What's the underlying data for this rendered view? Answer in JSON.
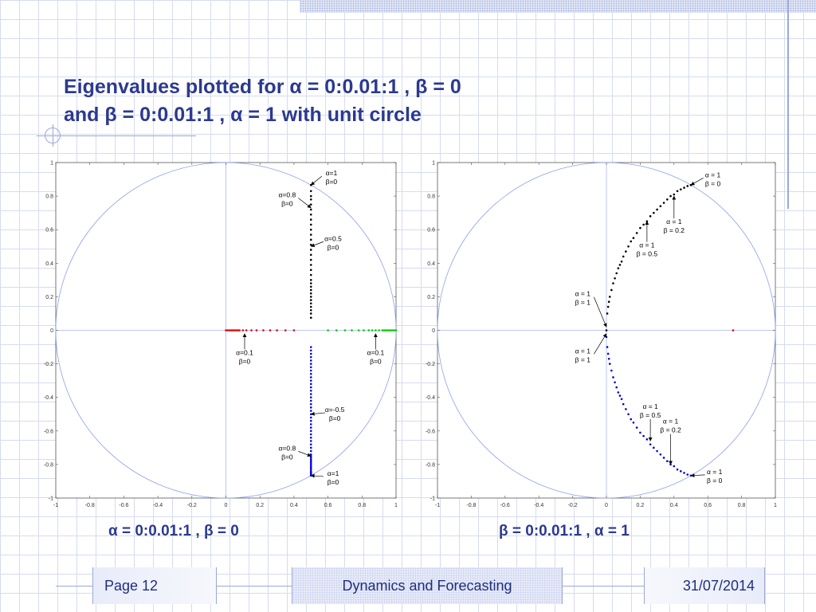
{
  "slide": {
    "title_line1": "Eigenvalues  plotted  for α = 0:0.01:1 , β = 0",
    "title_line2": "and β = 0:0.01:1 , α = 1 with unit circle",
    "caption_left": "α = 0:0.01:1 , β = 0",
    "caption_right": "β = 0:0.01:1 , α = 1",
    "footer_page": "Page 12",
    "footer_title": "Dynamics and Forecasting",
    "footer_date": "31/07/2014"
  },
  "colors": {
    "title": "#2b3990",
    "circle": "#8c9ff0",
    "axis": "#aab4ee",
    "red": "#e00000",
    "green": "#00cc00",
    "black": "#000000",
    "blue": "#0000dd"
  },
  "chart_data": [
    {
      "type": "scatter",
      "xlim": [
        -1,
        1
      ],
      "ylim": [
        -1,
        1
      ],
      "xticks": [
        -1,
        -0.8,
        -0.6,
        -0.4,
        -0.2,
        0,
        0.2,
        0.4,
        0.6,
        0.8,
        1
      ],
      "yticks": [
        -1,
        -0.8,
        -0.6,
        -0.4,
        -0.2,
        0,
        0.2,
        0.4,
        0.6,
        0.8,
        1
      ],
      "tick_labels_x": [
        "-1",
        "-0.8",
        "-0.6",
        "-0.4",
        "-0.2",
        "0",
        "0.2",
        "0.4",
        "0.6",
        "0.8",
        "1"
      ],
      "tick_labels_y": [
        "-1",
        "-0.8",
        "-0.6",
        "-0.4",
        "-0.2",
        "0",
        "0.2",
        "0.4",
        "0.6",
        "0.8",
        "1"
      ],
      "unit_circle": true,
      "grid": false,
      "series": [
        {
          "color": "#e00000",
          "x": [
            0.0,
            0.01,
            0.02,
            0.03,
            0.04,
            0.05,
            0.06,
            0.07,
            0.08,
            0.1,
            0.12,
            0.15,
            0.18,
            0.22,
            0.26,
            0.3,
            0.35,
            0.4
          ],
          "y": [
            0,
            0,
            0,
            0,
            0,
            0,
            0,
            0,
            0,
            0,
            0,
            0,
            0,
            0,
            0,
            0,
            0,
            0
          ]
        },
        {
          "color": "#00cc00",
          "x": [
            0.6,
            0.65,
            0.7,
            0.74,
            0.78,
            0.81,
            0.84,
            0.86,
            0.88,
            0.9,
            0.92,
            0.93,
            0.94,
            0.95,
            0.96,
            0.97,
            0.98,
            0.99,
            1.0
          ],
          "y": [
            0,
            0,
            0,
            0,
            0,
            0,
            0,
            0,
            0,
            0,
            0,
            0,
            0,
            0,
            0,
            0,
            0,
            0,
            0
          ]
        },
        {
          "color": "#000000",
          "x": [
            0.5,
            0.5,
            0.5,
            0.5,
            0.5,
            0.5,
            0.5,
            0.5,
            0.5,
            0.5,
            0.5,
            0.5,
            0.5,
            0.5,
            0.5,
            0.5,
            0.5,
            0.5,
            0.5,
            0.5,
            0.5,
            0.5,
            0.5,
            0.5,
            0.5,
            0.5,
            0.5,
            0.5,
            0.5,
            0.5,
            0.5
          ],
          "y": [
            0.075,
            0.1,
            0.12,
            0.14,
            0.16,
            0.18,
            0.2,
            0.22,
            0.24,
            0.26,
            0.28,
            0.3,
            0.33,
            0.36,
            0.39,
            0.42,
            0.45,
            0.48,
            0.51,
            0.54,
            0.57,
            0.6,
            0.63,
            0.66,
            0.69,
            0.72,
            0.75,
            0.78,
            0.8,
            0.83,
            0.866
          ]
        },
        {
          "color": "#0000dd",
          "x": [
            0.5,
            0.5,
            0.5,
            0.5,
            0.5,
            0.5,
            0.5,
            0.5,
            0.5,
            0.5,
            0.5,
            0.5,
            0.5,
            0.5,
            0.5,
            0.5,
            0.5,
            0.5,
            0.5,
            0.5,
            0.5,
            0.5,
            0.5,
            0.5,
            0.5,
            0.5,
            0.5,
            0.5,
            0.5,
            0.5,
            0.5,
            0.5,
            0.5,
            0.5,
            0.5,
            0.5,
            0.5,
            0.5,
            0.5,
            0.5,
            0.5,
            0.5,
            0.5,
            0.5,
            0.5,
            0.5,
            0.5,
            0.5
          ],
          "y": [
            -0.1,
            -0.12,
            -0.14,
            -0.16,
            -0.18,
            -0.2,
            -0.22,
            -0.24,
            -0.26,
            -0.28,
            -0.3,
            -0.32,
            -0.34,
            -0.36,
            -0.38,
            -0.4,
            -0.42,
            -0.44,
            -0.46,
            -0.48,
            -0.5,
            -0.52,
            -0.54,
            -0.56,
            -0.58,
            -0.6,
            -0.62,
            -0.64,
            -0.66,
            -0.68,
            -0.7,
            -0.72,
            -0.74,
            -0.75,
            -0.76,
            -0.77,
            -0.78,
            -0.79,
            -0.8,
            -0.81,
            -0.82,
            -0.83,
            -0.84,
            -0.845,
            -0.85,
            -0.855,
            -0.86,
            -0.866
          ]
        }
      ],
      "annotations": [
        {
          "text": [
            "α=1",
            "β=0"
          ],
          "x": 0.62,
          "y": 0.89,
          "ax": 0.5,
          "ay": 0.866,
          "dir": "left"
        },
        {
          "text": [
            "α=0.8",
            "β=0"
          ],
          "x": 0.36,
          "y": 0.76,
          "ax": 0.5,
          "ay": 0.73,
          "dir": "right"
        },
        {
          "text": [
            "α=0.5",
            "β=0"
          ],
          "x": 0.63,
          "y": 0.5,
          "ax": 0.5,
          "ay": 0.5,
          "dir": "left"
        },
        {
          "text": [
            "α=0.1",
            "β=0"
          ],
          "x": 0.11,
          "y": -0.18,
          "ax": 0.11,
          "ay": -0.02,
          "dir": "up"
        },
        {
          "text": [
            "α=0.1",
            "β=0"
          ],
          "x": 0.88,
          "y": -0.18,
          "ax": 0.88,
          "ay": -0.02,
          "dir": "up"
        },
        {
          "text": [
            "α=-0.5",
            "β=0"
          ],
          "x": 0.64,
          "y": -0.52,
          "ax": 0.5,
          "ay": -0.5,
          "dir": "left"
        },
        {
          "text": [
            "α=0.8",
            "β=0"
          ],
          "x": 0.36,
          "y": -0.75,
          "ax": 0.5,
          "ay": -0.75,
          "dir": "right"
        },
        {
          "text": [
            "α=1",
            "β=0"
          ],
          "x": 0.63,
          "y": -0.9,
          "ax": 0.5,
          "ay": -0.866,
          "dir": "left"
        }
      ]
    },
    {
      "type": "scatter",
      "xlim": [
        -1,
        1
      ],
      "ylim": [
        -1,
        1
      ],
      "xticks": [
        -1,
        -0.8,
        -0.6,
        -0.4,
        -0.2,
        0,
        0.2,
        0.4,
        0.6,
        0.8,
        1
      ],
      "yticks": [
        -1,
        -0.8,
        -0.6,
        -0.4,
        -0.2,
        0,
        0.2,
        0.4,
        0.6,
        0.8,
        1
      ],
      "tick_labels_x": [
        "-1",
        "-0.8",
        "-0.6",
        "-0.4",
        "-0.2",
        "0",
        "0.2",
        "0.4",
        "0.6",
        "0.8",
        "1"
      ],
      "tick_labels_y": [
        "-1",
        "-0.8",
        "-0.6",
        "-0.4",
        "-0.2",
        "0",
        "0.2",
        "0.4",
        "0.6",
        "0.8",
        "1"
      ],
      "unit_circle": true,
      "grid": false,
      "series": [
        {
          "color": "#000000",
          "x": [
            0.0,
            0.005,
            0.01,
            0.015,
            0.02,
            0.03,
            0.04,
            0.05,
            0.06,
            0.07,
            0.08,
            0.09,
            0.1,
            0.115,
            0.13,
            0.145,
            0.16,
            0.18,
            0.2,
            0.22,
            0.24,
            0.26,
            0.28,
            0.3,
            0.32,
            0.34,
            0.36,
            0.38,
            0.4,
            0.42,
            0.44,
            0.46,
            0.48,
            0.5
          ],
          "y": [
            0.0,
            0.1,
            0.14,
            0.17,
            0.2,
            0.24,
            0.28,
            0.31,
            0.34,
            0.37,
            0.39,
            0.41,
            0.44,
            0.47,
            0.5,
            0.53,
            0.55,
            0.58,
            0.61,
            0.63,
            0.65,
            0.68,
            0.7,
            0.72,
            0.74,
            0.76,
            0.78,
            0.8,
            0.81,
            0.83,
            0.84,
            0.85,
            0.86,
            0.866
          ]
        },
        {
          "color": "#0000dd",
          "x": [
            0.0,
            0.005,
            0.01,
            0.015,
            0.02,
            0.03,
            0.04,
            0.05,
            0.06,
            0.07,
            0.08,
            0.09,
            0.1,
            0.115,
            0.13,
            0.145,
            0.16,
            0.18,
            0.2,
            0.22,
            0.24,
            0.26,
            0.28,
            0.3,
            0.32,
            0.34,
            0.36,
            0.38,
            0.4,
            0.42,
            0.44,
            0.46,
            0.48,
            0.5
          ],
          "y": [
            -0.04,
            -0.1,
            -0.14,
            -0.17,
            -0.2,
            -0.24,
            -0.28,
            -0.31,
            -0.34,
            -0.37,
            -0.39,
            -0.41,
            -0.44,
            -0.47,
            -0.5,
            -0.53,
            -0.55,
            -0.58,
            -0.61,
            -0.63,
            -0.65,
            -0.68,
            -0.7,
            -0.72,
            -0.74,
            -0.76,
            -0.78,
            -0.8,
            -0.81,
            -0.83,
            -0.84,
            -0.85,
            -0.86,
            -0.866
          ]
        },
        {
          "color": "#e00000",
          "x": [
            0.75
          ],
          "y": [
            0.0
          ]
        }
      ],
      "annotations": [
        {
          "text": [
            "α = 1",
            "β = 0"
          ],
          "x": 0.63,
          "y": 0.88,
          "ax": 0.5,
          "ay": 0.866,
          "dir": "left"
        },
        {
          "text": [
            "α = 1",
            "β = 0.2"
          ],
          "x": 0.4,
          "y": 0.6,
          "ax": 0.4,
          "ay": 0.8,
          "dir": "up"
        },
        {
          "text": [
            "α = 1",
            "β = 0.5"
          ],
          "x": 0.24,
          "y": 0.46,
          "ax": 0.24,
          "ay": 0.65,
          "dir": "up"
        },
        {
          "text": [
            "α = 1",
            "β = 1"
          ],
          "x": -0.14,
          "y": 0.17,
          "ax": 0.0,
          "ay": 0.02,
          "dir": "right"
        },
        {
          "text": [
            "α = 1",
            "β = 1"
          ],
          "x": -0.14,
          "y": -0.17,
          "ax": 0.0,
          "ay": -0.02,
          "dir": "right"
        },
        {
          "text": [
            "α = 1",
            "β = 0.5"
          ],
          "x": 0.26,
          "y": -0.5,
          "ax": 0.26,
          "ay": -0.66,
          "dir": "down"
        },
        {
          "text": [
            "α = 1",
            "β = 0.2"
          ],
          "x": 0.38,
          "y": -0.59,
          "ax": 0.38,
          "ay": -0.8,
          "dir": "down"
        },
        {
          "text": [
            "α = 1",
            "β = 0"
          ],
          "x": 0.64,
          "y": -0.89,
          "ax": 0.5,
          "ay": -0.866,
          "dir": "left"
        }
      ]
    }
  ]
}
